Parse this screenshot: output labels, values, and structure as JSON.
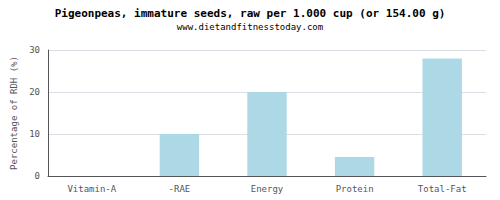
{
  "chart_data": {
    "type": "bar",
    "title": "Pigeonpeas, immature seeds, raw per 1.000 cup (or 154.00 g)",
    "subtitle": "www.dietandfitnesstoday.com",
    "categories": [
      "Vitamin-A",
      "-RAE",
      "Energy",
      "Protein",
      "Total-Fat"
    ],
    "values": [
      0,
      10,
      20,
      4.5,
      28
    ],
    "color": "#add8e6",
    "ylabel": "Percentage of RDH (%)",
    "ylim": [
      0,
      30
    ],
    "yticks": [
      0,
      10,
      20,
      30
    ],
    "grid": true
  }
}
